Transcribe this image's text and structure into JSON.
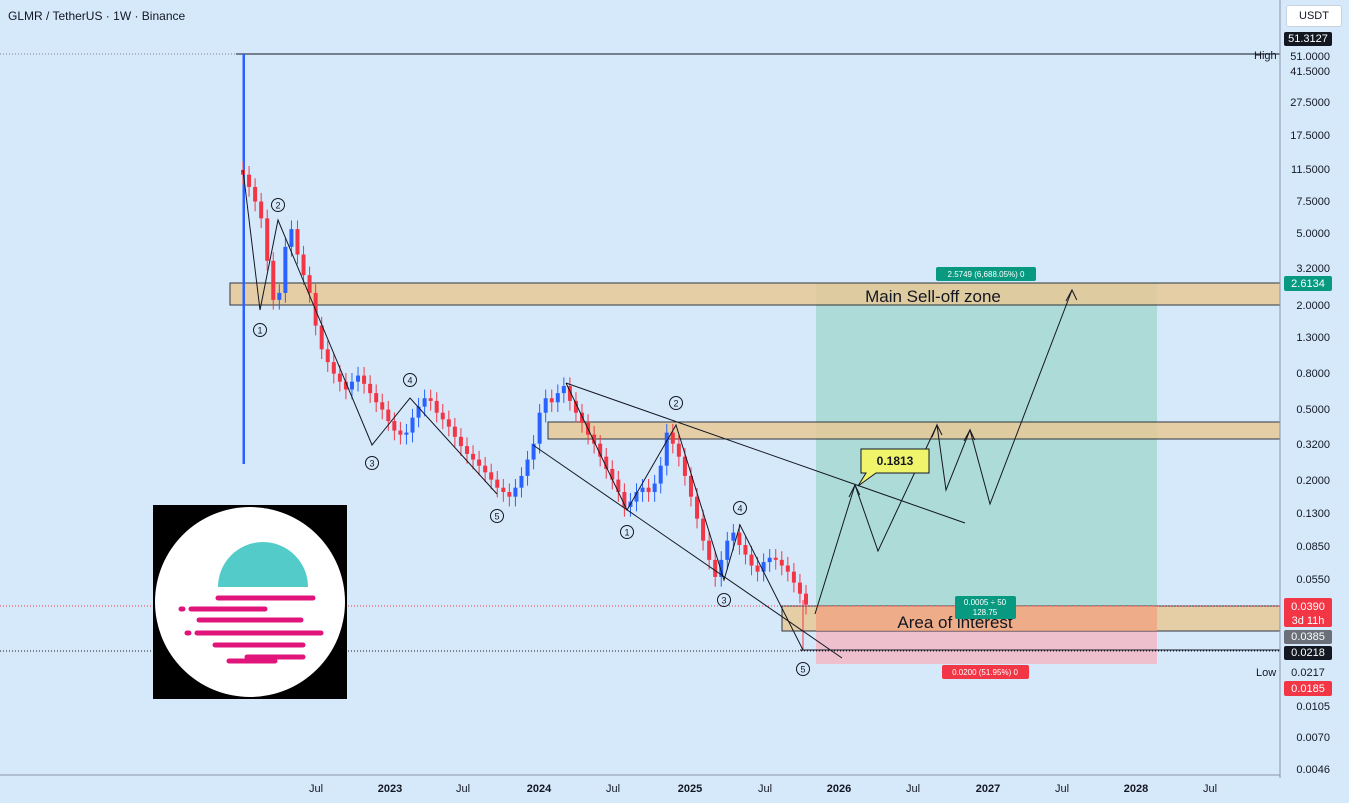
{
  "header": {
    "title": "GLMR / TetherUS · 1W · Binance",
    "currency_button": "USDT"
  },
  "chart_data": {
    "type": "candlestick",
    "title": "GLMR / TetherUS · 1W · Binance",
    "scale": "log",
    "y_ticks": [
      "51.0000",
      "41.5000",
      "27.5000",
      "17.5000",
      "11.5000",
      "7.5000",
      "5.0000",
      "3.2000",
      "2.0000",
      "1.3000",
      "0.8000",
      "0.5000",
      "0.3200",
      "0.2000",
      "0.1300",
      "0.0850",
      "0.0550",
      "0.0105",
      "0.0070",
      "0.0046"
    ],
    "x_ticks": [
      "Jul",
      "2023",
      "Jul",
      "2024",
      "Jul",
      "2025",
      "Jul",
      "2026",
      "Jul",
      "2027",
      "Jul",
      "2028",
      "Jul"
    ],
    "price_labels": {
      "high_value": "51.3127",
      "high_label": "High",
      "zone_top": "2.6134",
      "current": "0.0390",
      "countdown": "3d 11h",
      "entry": "0.0385",
      "stop": "0.0218",
      "low_value": "0.0217",
      "low_label": "Low",
      "low_stop": "0.0185"
    },
    "annotations": {
      "sell_zone": "Main Sell-off zone",
      "area_of_interest": "Area of interest",
      "target_callout": "0.1813",
      "target_box": "2.5749 (6,688.05%) 0",
      "ratio_line1": "0.0005 ÷ 50",
      "ratio_line2": "128.75",
      "stop_box": "0.0200 (51.95%) 0"
    },
    "wave_labels": [
      "1",
      "2",
      "3",
      "4",
      "5",
      "1",
      "2",
      "3",
      "4",
      "5"
    ],
    "series_close": [
      10.8,
      9.2,
      7.6,
      6.1,
      3.5,
      2.1,
      2.3,
      4.2,
      5.3,
      3.8,
      2.9,
      2.3,
      1.5,
      1.1,
      0.93,
      0.8,
      0.72,
      0.65,
      0.72,
      0.78,
      0.7,
      0.62,
      0.55,
      0.5,
      0.43,
      0.38,
      0.36,
      0.37,
      0.45,
      0.52,
      0.58,
      0.56,
      0.48,
      0.44,
      0.4,
      0.35,
      0.31,
      0.28,
      0.26,
      0.24,
      0.22,
      0.2,
      0.18,
      0.17,
      0.16,
      0.18,
      0.21,
      0.26,
      0.32,
      0.48,
      0.58,
      0.55,
      0.62,
      0.68,
      0.56,
      0.48,
      0.42,
      0.36,
      0.32,
      0.27,
      0.23,
      0.2,
      0.17,
      0.14,
      0.15,
      0.17,
      0.18,
      0.17,
      0.19,
      0.24,
      0.37,
      0.32,
      0.27,
      0.21,
      0.16,
      0.12,
      0.09,
      0.07,
      0.056,
      0.07,
      0.09,
      0.1,
      0.085,
      0.075,
      0.065,
      0.06,
      0.068,
      0.072,
      0.07,
      0.065,
      0.06,
      0.052,
      0.045,
      0.039
    ],
    "colors": {
      "up": "#2962ff",
      "down": "#f23645",
      "sell_zone": "#e8c997",
      "target_zone": "#9fd6cb",
      "stop_zone": "#f2b9c6"
    }
  }
}
